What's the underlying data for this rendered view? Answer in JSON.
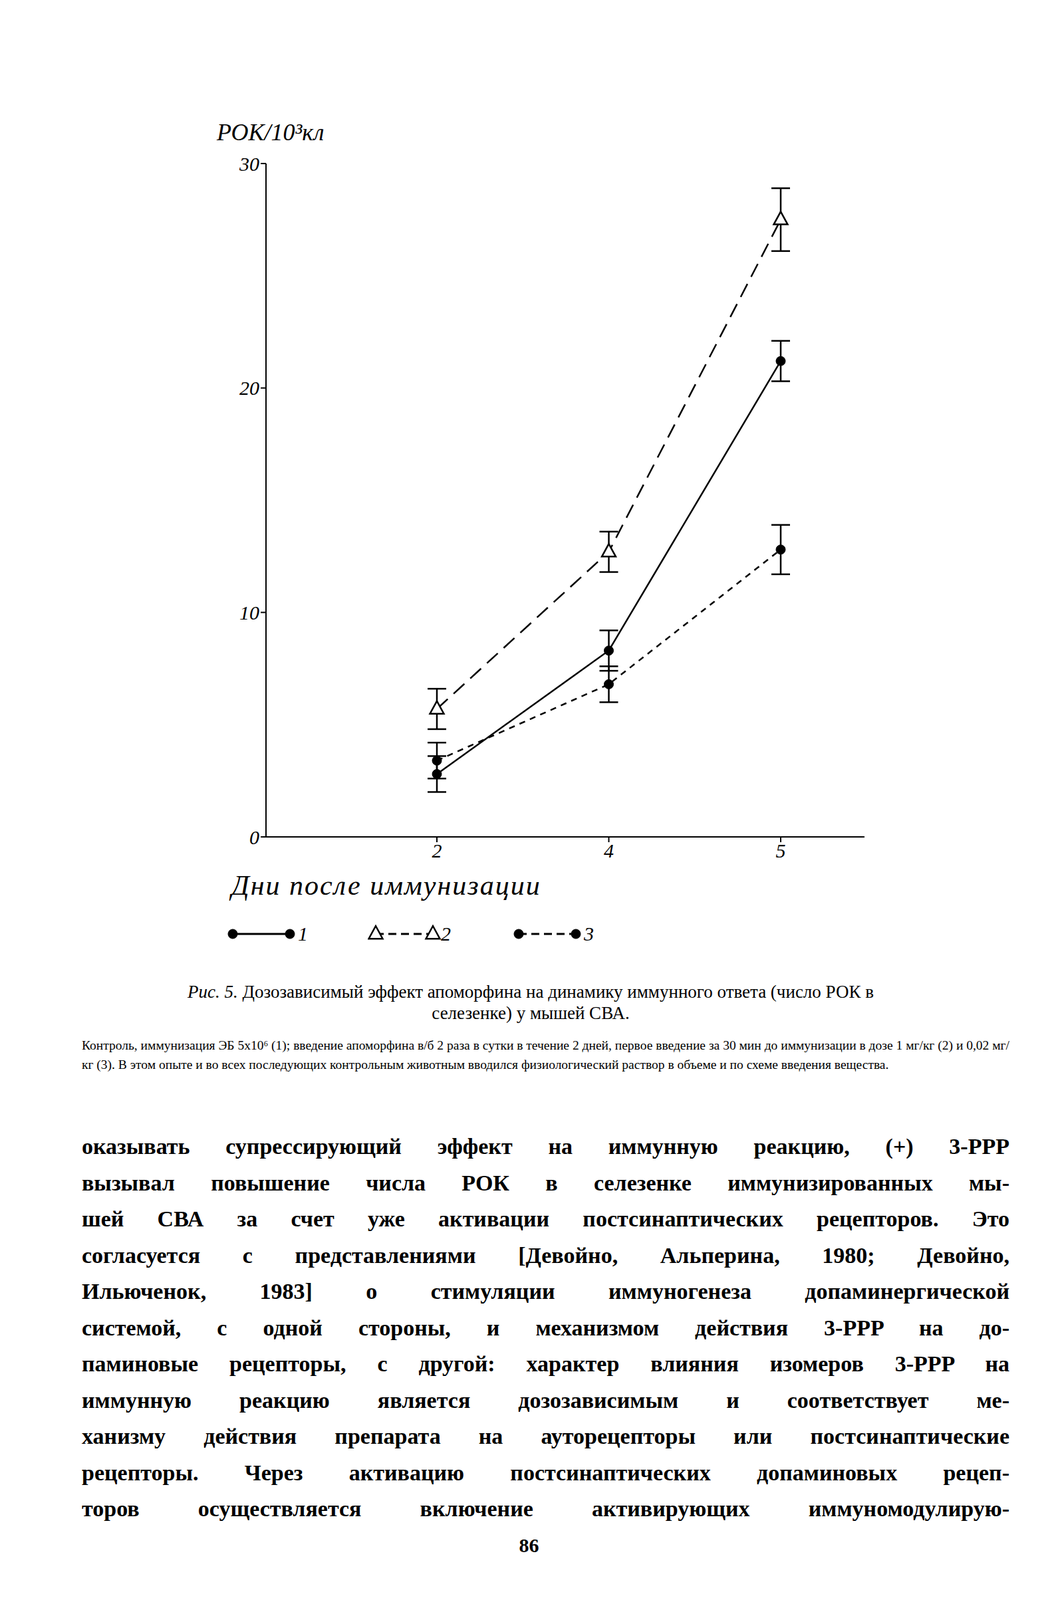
{
  "chart_data": {
    "type": "line",
    "x_label": "Дни после иммунизации",
    "y_label": "РОК/10³кл",
    "categories": [
      "2",
      "4",
      "5"
    ],
    "ylim": [
      0,
      30
    ],
    "yticks": [
      0,
      10,
      20,
      30
    ],
    "grid": false,
    "legend": "bottom",
    "series": [
      {
        "name": "1",
        "color": "#000000",
        "marker": "circle",
        "line_style": "solid",
        "values": [
          2.8,
          8.3,
          21.2
        ],
        "errors": [
          0.8,
          0.9,
          0.9
        ]
      },
      {
        "name": "2",
        "color": "#000000",
        "marker": "triangle_open",
        "line_style": "long_dash",
        "values": [
          5.7,
          12.7,
          27.5
        ],
        "errors": [
          0.9,
          0.9,
          1.4
        ]
      },
      {
        "name": "3",
        "color": "#000000",
        "marker": "circle",
        "line_style": "short_dash",
        "values": [
          3.4,
          6.8,
          12.8
        ],
        "errors": [
          0.8,
          0.8,
          1.1
        ]
      }
    ]
  },
  "caption": {
    "figure_label": "Рис. 5.",
    "title": "Дозозависимый эффект апоморфина на динамику иммунного ответа (число РОК в селезенке) у мышей СВА.",
    "note": "Контроль, иммунизация ЭБ 5x10⁶ (1); введение апоморфина в/б 2 раза в сутки в течение 2 дней, первое введение за 30 мин до иммунизации в дозе 1 мг/кг (2) и 0,02 мг/кг (3). В этом опыте и во всех последующих контрольным животным вводился физиологический раствор в объеме и по схеме введения вещества."
  },
  "body_lines": [
    "оказывать супрессирующий эффект на иммунную реакцию, (+) 3-PPP",
    "вызывал повышение числа РОК в селезенке иммунизированных мы-",
    "шей СВА за счет уже активации постсинаптических рецепторов. Это",
    "согласуется с представлениями [Девойно, Альперина, 1980; Девойно,",
    "Ильюченок, 1983] о стимуляции иммуногенеза допаминергической",
    "системой, с одной стороны, и механизмом действия 3-PPP на до-",
    "паминовые рецепторы, с другой: характер влияния изомеров 3-PPP на",
    "иммунную реакцию является дозозависимым и соответствует ме-",
    "ханизму действия препарата на ауторецепторы или постсинаптические",
    "рецепторы. Через активацию постсинаптических допаминовых рецеп-",
    "торов осуществляется включение активирующих иммуномодулирую-"
  ],
  "page_number": "86"
}
